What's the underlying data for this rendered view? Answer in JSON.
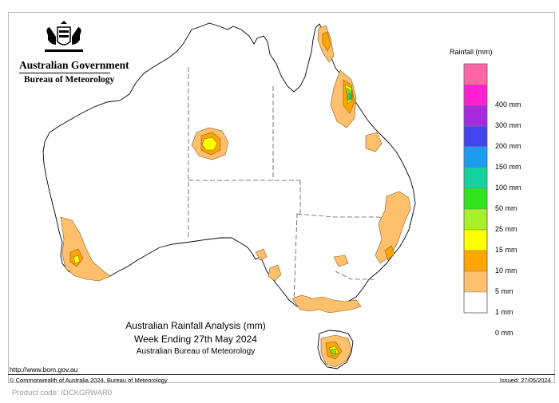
{
  "org": {
    "line1": "Australian Government",
    "line2": "Bureau of Meteorology"
  },
  "legend": {
    "title": "Rainfall (mm)",
    "items": [
      {
        "label": "",
        "color": "#ff66a6"
      },
      {
        "label": "400 mm",
        "color": "#ff1fd2"
      },
      {
        "label": "300 mm",
        "color": "#a52bdc"
      },
      {
        "label": "200 mm",
        "color": "#4245ee"
      },
      {
        "label": "150 mm",
        "color": "#1c9cf0"
      },
      {
        "label": "100 mm",
        "color": "#14d29b"
      },
      {
        "label": "50 mm",
        "color": "#33e31e"
      },
      {
        "label": "25 mm",
        "color": "#a9f02a"
      },
      {
        "label": "15 mm",
        "color": "#ffff00"
      },
      {
        "label": "10 mm",
        "color": "#ffa500"
      },
      {
        "label": "5 mm",
        "color": "#ffc06e"
      },
      {
        "label": "1 mm",
        "color": "#ffffff"
      },
      {
        "label": "0 mm",
        "color": ""
      }
    ]
  },
  "caption": {
    "line1": "Australian Rainfall Analysis (mm)",
    "line2": "Week Ending 27th May 2024",
    "line3": "Australian Bureau of Meteorology"
  },
  "footer": {
    "url": "http://www.bom.gov.au",
    "copyright": "© Commonwealth of Australia 2024, Bureau of Meteorology",
    "issued": "Issued: 27/05/2024",
    "product": "Product code: IDCKGRWAR0"
  },
  "colors": {
    "outline": "#000000",
    "border_dash": "#555555"
  }
}
